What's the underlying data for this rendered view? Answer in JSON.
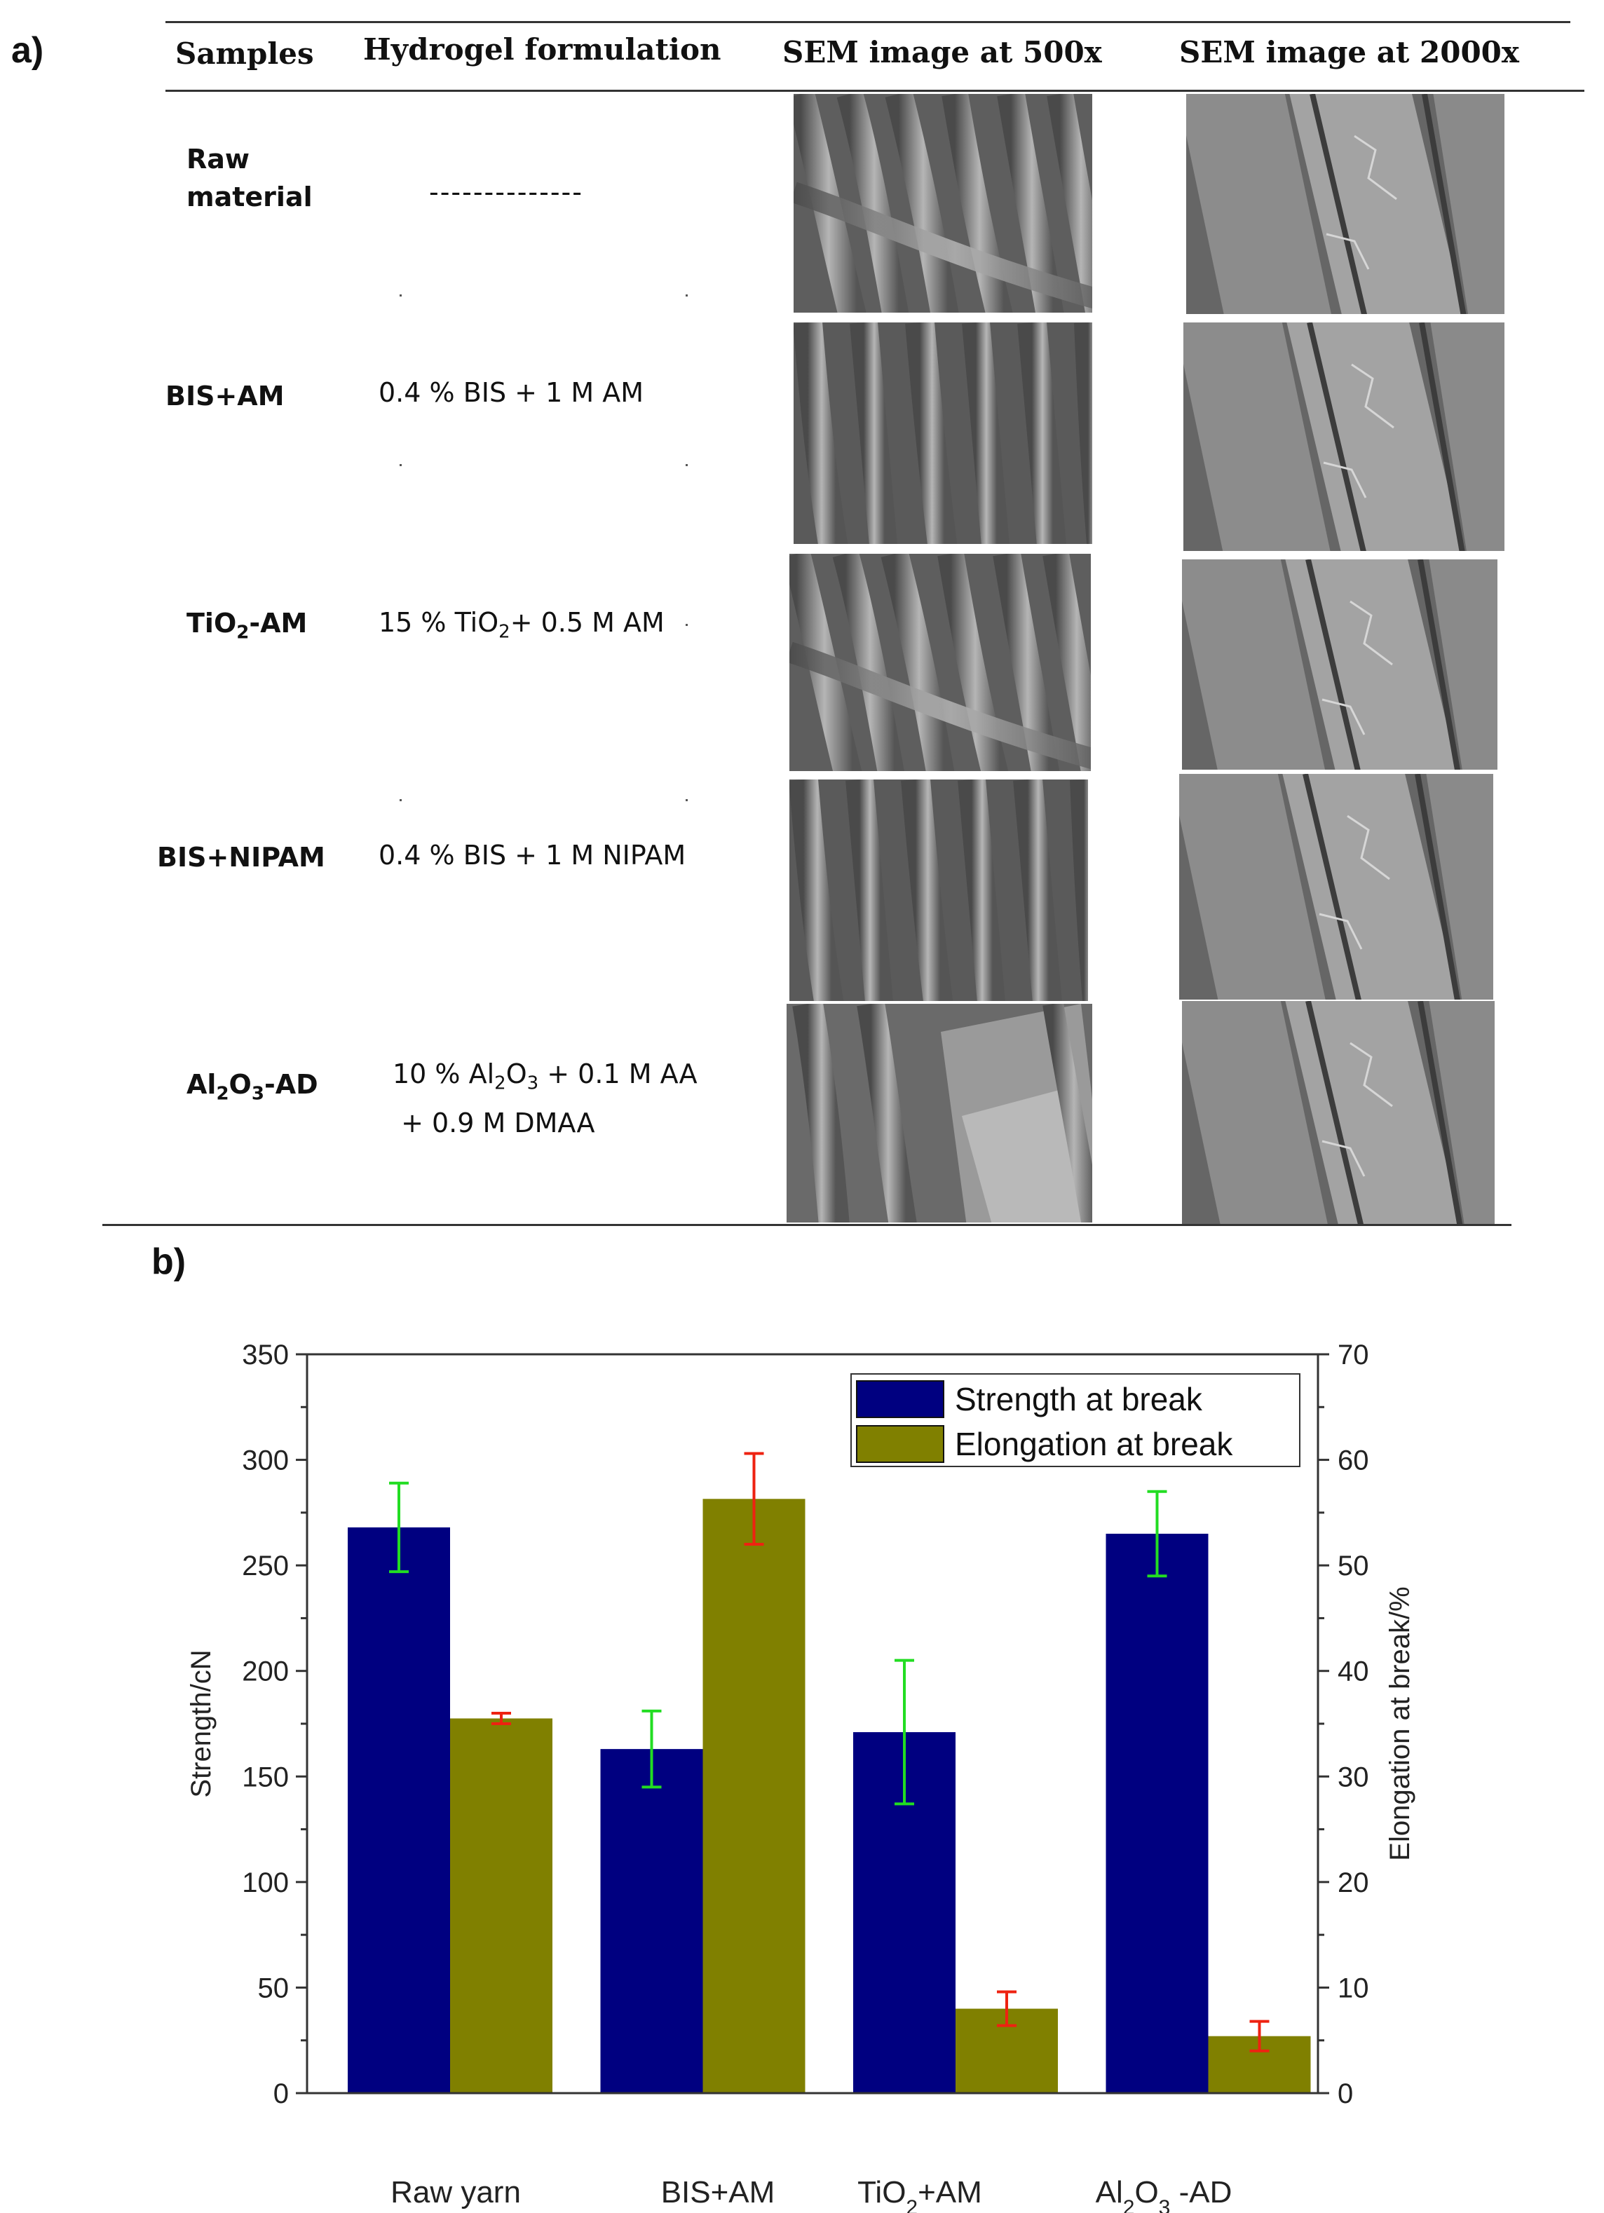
{
  "panel_a": {
    "label": "a)"
  },
  "panel_b": {
    "label": "b)"
  },
  "table": {
    "headers": [
      "Samples",
      "Hydrogel formulation",
      "SEM image at 500x",
      "SEM image at 2000x"
    ],
    "rows": [
      {
        "sample": "Raw material",
        "formulation": "--------------"
      },
      {
        "sample": "BIS+AM",
        "formulation": "0.4 % BIS + 1 M AM"
      },
      {
        "sample": "TiO2-AM",
        "formulation": "15 % TiO2+ 0.5 M AM"
      },
      {
        "sample": "BIS+NIPAM",
        "formulation": "0.4 % BIS + 1 M NIPAM"
      },
      {
        "sample": "Al2O3-AD",
        "formulation": "10 % Al2O3 + 0.1 M AA + 0.9 M DMAA"
      }
    ]
  },
  "chart_data": {
    "type": "bar",
    "categories": [
      "Raw yarn",
      "BIS+AM",
      "TiO2+AM",
      "Al2O3 -AD"
    ],
    "y_left": {
      "label": "Strength/cN",
      "range": [
        0,
        350
      ],
      "ticks": [
        0,
        50,
        100,
        150,
        200,
        250,
        300,
        350
      ]
    },
    "y_right": {
      "label": "Elongation at break/%",
      "range": [
        0,
        70
      ],
      "ticks": [
        0,
        10,
        20,
        30,
        40,
        50,
        60,
        70
      ]
    },
    "series": [
      {
        "name": "Strength at break",
        "axis": "left",
        "color": "#000080",
        "error_color": "#22dd22",
        "values": [
          268,
          163,
          171,
          265
        ],
        "errors": [
          21,
          18,
          34,
          20
        ]
      },
      {
        "name": "Elongation at break",
        "axis": "right",
        "color": "#808000",
        "error_color": "#ee2211",
        "values": [
          35.5,
          56.3,
          8.0,
          5.4
        ],
        "errors": [
          0.5,
          4.3,
          1.6,
          1.4
        ]
      }
    ],
    "legend_position": "top-right",
    "grid": false
  }
}
